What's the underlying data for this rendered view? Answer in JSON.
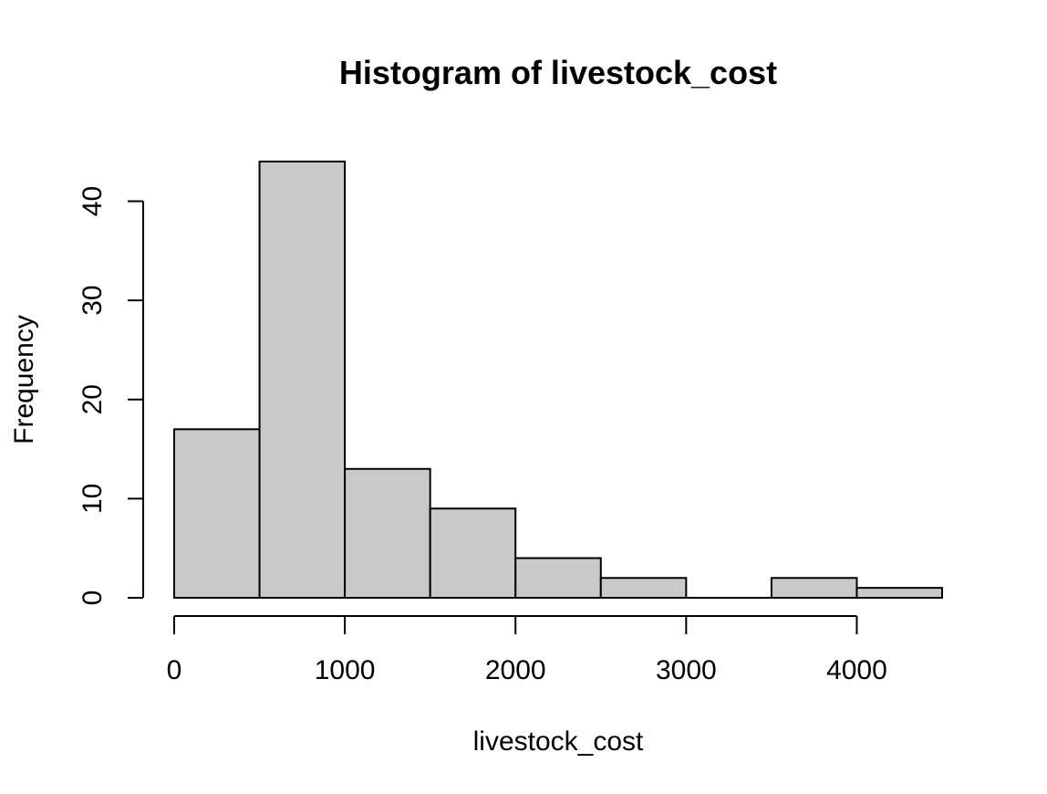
{
  "chart_data": {
    "type": "bar",
    "title": "Histogram of livestock_cost",
    "xlabel": "livestock_cost",
    "ylabel": "Frequency",
    "bins": [
      {
        "start": 0,
        "end": 500,
        "count": 17
      },
      {
        "start": 500,
        "end": 1000,
        "count": 44
      },
      {
        "start": 1000,
        "end": 1500,
        "count": 13
      },
      {
        "start": 1500,
        "end": 2000,
        "count": 9
      },
      {
        "start": 2000,
        "end": 2500,
        "count": 4
      },
      {
        "start": 2500,
        "end": 3000,
        "count": 2
      },
      {
        "start": 3000,
        "end": 3500,
        "count": 0
      },
      {
        "start": 3500,
        "end": 4000,
        "count": 2
      },
      {
        "start": 4000,
        "end": 4500,
        "count": 1
      }
    ],
    "xlim": [
      0,
      4500
    ],
    "ylim": [
      0,
      44
    ],
    "x_ticks": [
      0,
      1000,
      2000,
      3000,
      4000
    ],
    "y_ticks": [
      0,
      10,
      20,
      30,
      40
    ],
    "grid": false,
    "legend": "none",
    "bar_color": "#c9c9c9",
    "edge_color": "#000000"
  }
}
